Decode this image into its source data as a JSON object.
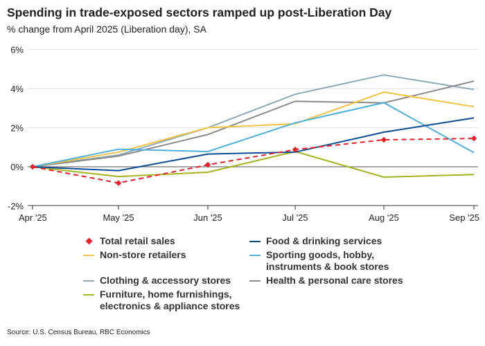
{
  "chart_data": {
    "type": "line",
    "title": "Spending in trade-exposed sectors ramped up post-Liberation Day",
    "subtitle": "% change from April 2025 (Liberation day), SA",
    "source": "Source: U.S. Census Bureau, RBC Economics",
    "categories": [
      "Apr '25",
      "May '25",
      "Jun '25",
      "Jul '25",
      "Aug '25",
      "Sep '25"
    ],
    "ylim": [
      -2,
      6
    ],
    "yticks": [
      -2,
      0,
      2,
      4,
      6
    ],
    "ytick_labels": [
      "-2%",
      "0%",
      "2%",
      "4%",
      "6%"
    ],
    "grid": true,
    "legend_position": "bottom",
    "series": [
      {
        "name": "Total retail sales",
        "color": "#e8202a",
        "style": "dashed-markers",
        "values": [
          0,
          -0.83,
          0.1,
          0.88,
          1.38,
          1.45
        ]
      },
      {
        "name": "Food & drinking services",
        "color": "#0b4a94",
        "values": [
          0,
          -0.2,
          0.65,
          0.75,
          1.77,
          2.5
        ]
      },
      {
        "name": "Non-store retailers",
        "color": "#f5c342",
        "values": [
          0,
          0.75,
          2.0,
          2.2,
          3.82,
          3.07
        ]
      },
      {
        "name": "Sporting goods, hobby, instruments & book stores",
        "color": "#4cb0dd",
        "values": [
          0,
          0.9,
          0.78,
          2.25,
          3.28,
          0.72
        ]
      },
      {
        "name": "Clothing & accessory stores",
        "color": "#8aaab9",
        "values": [
          0,
          0.6,
          2.0,
          3.71,
          4.7,
          3.95
        ]
      },
      {
        "name": "Health & personal care stores",
        "color": "#8a8a8a",
        "values": [
          0,
          0.55,
          1.65,
          3.35,
          3.27,
          4.38
        ]
      },
      {
        "name": "Furniture, home furnishings, electronics & appliance stores",
        "color": "#a3b51a",
        "values": [
          0,
          -0.5,
          -0.28,
          0.78,
          -0.53,
          -0.4
        ]
      }
    ]
  }
}
